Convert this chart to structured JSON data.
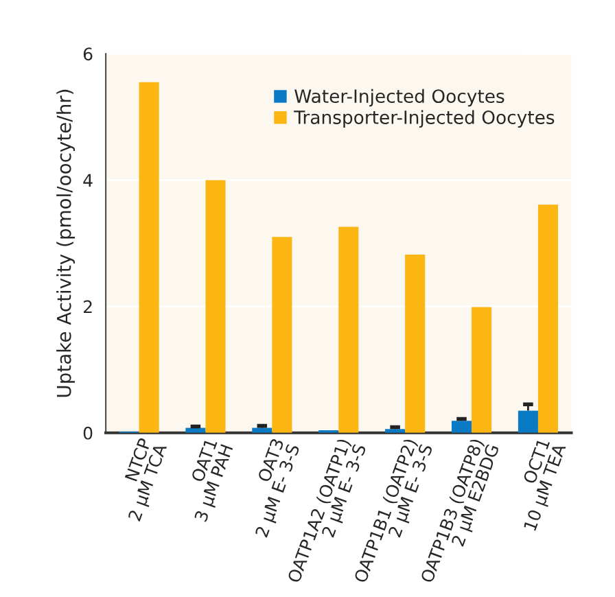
{
  "chart_data": {
    "type": "bar",
    "categories": [
      "NTCP\n2 μM TCA",
      "OAT1\n3 μM PAH",
      "OAT3\n2 μM E- 3-S",
      "OATP1A2 (OATP1)\n2 μM E- 3-S",
      "OATP1B1 (OATP2)\n2 μM E- 3-S",
      "OATP1B3 (OATP8)\n2 μM E2BDG",
      "OCT1\n10 μM TEA"
    ],
    "ylabel": "Uptake Activity (pmol/oocyte/hr)",
    "series": [
      {
        "name": "Water-Injected Oocytes",
        "color": "#0a7ac4",
        "values": [
          0.02,
          0.08,
          0.08,
          0.04,
          0.06,
          0.19,
          0.35
        ],
        "errors": [
          null,
          [
            0.08,
            0.1
          ],
          [
            0.08,
            0.11
          ],
          null,
          [
            0.06,
            0.09
          ],
          [
            0.19,
            0.22
          ],
          [
            0.35,
            0.45
          ]
        ]
      },
      {
        "name": "Transporter-Injected Oocytes",
        "color": "#fbb614",
        "values": [
          5.55,
          4.0,
          3.1,
          3.26,
          2.82,
          1.99,
          3.61
        ]
      }
    ],
    "ylim": [
      0,
      6
    ],
    "yticks": [
      0,
      2,
      4,
      6
    ],
    "grid": "y",
    "legend": "top right"
  }
}
